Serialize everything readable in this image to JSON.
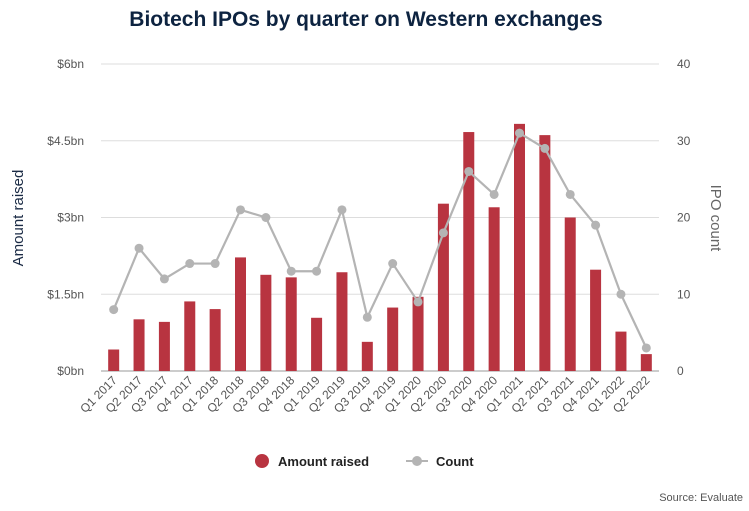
{
  "chart_data": {
    "type": "bar",
    "title": "Biotech IPOs by quarter on Western exchanges",
    "ylabel": "Amount raised",
    "y2label": "IPO count",
    "source": "Source: Evaluate",
    "categories": [
      "Q1 2017",
      "Q2 2017",
      "Q3 2017",
      "Q4 2017",
      "Q1 2018",
      "Q2 2018",
      "Q3 2018",
      "Q4 2018",
      "Q1 2019",
      "Q2 2019",
      "Q3 2019",
      "Q4 2019",
      "Q1 2020",
      "Q2 2020",
      "Q3 2020",
      "Q4 2020",
      "Q1 2021",
      "Q2 2021",
      "Q3 2021",
      "Q4 2021",
      "Q1 2022",
      "Q2 2022"
    ],
    "y_ticks": [
      "$0bn",
      "$1.5bn",
      "$3bn",
      "$4.5bn",
      "$6bn"
    ],
    "y_tick_values": [
      0,
      1.5,
      3,
      4.5,
      6
    ],
    "y2_ticks": [
      "0",
      "10",
      "20",
      "30",
      "40"
    ],
    "y2_tick_values": [
      0,
      10,
      20,
      30,
      40
    ],
    "ylim": [
      0,
      6
    ],
    "y2lim": [
      0,
      40
    ],
    "grid": true,
    "legend_position": "bottom-center",
    "series": [
      {
        "name": "Amount raised",
        "type": "bar",
        "axis": "left",
        "color": "#b83440",
        "values": [
          0.42,
          1.01,
          0.96,
          1.36,
          1.21,
          2.22,
          1.88,
          1.83,
          1.04,
          1.93,
          0.57,
          1.24,
          1.45,
          3.27,
          4.67,
          3.2,
          4.83,
          4.61,
          3.0,
          1.98,
          0.77,
          0.33
        ]
      },
      {
        "name": "Count",
        "type": "line",
        "axis": "right",
        "color": "#b4b4b4",
        "values": [
          8,
          16,
          12,
          14,
          14,
          21,
          20,
          13,
          13,
          21,
          7,
          14,
          9,
          18,
          26,
          23,
          31,
          29,
          23,
          19,
          10,
          3
        ]
      }
    ]
  }
}
